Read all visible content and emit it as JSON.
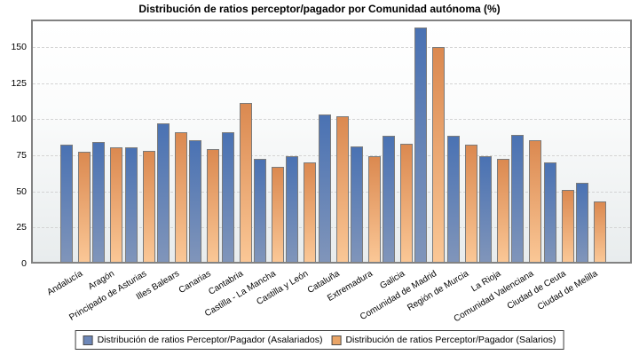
{
  "title": "Distribución de ratios perceptor/pagador por Comunidad autónoma (%)",
  "chart_data": {
    "type": "bar",
    "title": "Distribución de ratios perceptor/pagador por Comunidad autónoma (%)",
    "categories": [
      "Andalucía",
      "Aragón",
      "Principado de Asturias",
      "Illes Balears",
      "Canarias",
      "Cantabria",
      "Castilla - La Mancha",
      "Castilla y León",
      "Cataluña",
      "Extremadura",
      "Galicia",
      "Comunidad de Madrid",
      "Región de Murcia",
      "La Rioja",
      "Comunidad Valenciana",
      "Ciudad de Ceuta",
      "Ciudad de Melilla"
    ],
    "series": [
      {
        "name": "Distribución de ratios Perceptor/Pagador (Asalariados)",
        "values": [
          81,
          83,
          79,
          96,
          84,
          90,
          71,
          73,
          102,
          80,
          87,
          162,
          87,
          73,
          88,
          69,
          55
        ],
        "color_top": "#4a72b3",
        "color_bottom": "#8095ba",
        "legend_color": "#6d87b8"
      },
      {
        "name": "Distribución de ratios Perceptor/Pagador (Salarios)",
        "values": [
          76,
          79,
          77,
          90,
          78,
          110,
          66,
          69,
          101,
          73,
          82,
          149,
          81,
          71,
          84,
          50,
          42
        ],
        "color_top": "#db8950",
        "color_bottom": "#fac796",
        "legend_color": "#e9a466"
      }
    ],
    "yticks": [
      0,
      25,
      50,
      75,
      100,
      125,
      150
    ],
    "ylim": [
      0,
      169
    ],
    "xlabel": "",
    "ylabel": "",
    "grid": "horizontal-dashed",
    "legend_position": "bottom",
    "bar_border_color": "#7b7b7b",
    "plot_border_color": "#828282"
  }
}
